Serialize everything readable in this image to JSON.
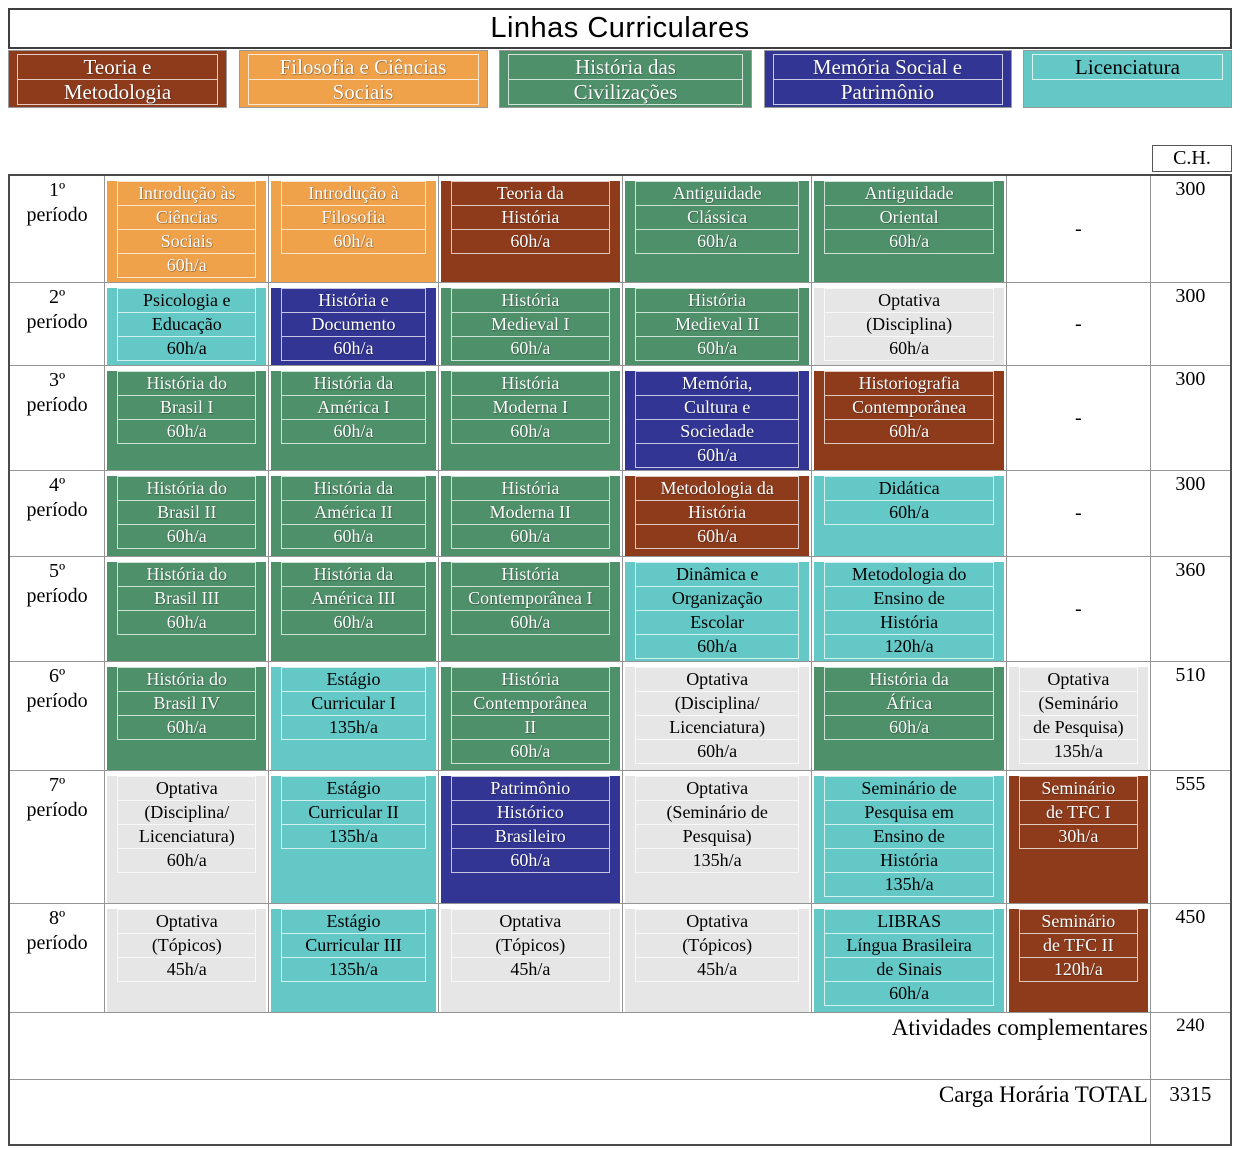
{
  "title": "Linhas Curriculares",
  "ch_header": "C.H.",
  "categories": {
    "teoria": {
      "bg": "#8E3B1C",
      "fg": "#FFFFFF"
    },
    "filosofia": {
      "bg": "#F0A24B",
      "fg": "#FFFFFF"
    },
    "historia": {
      "bg": "#4E9069",
      "fg": "#FFFFFF"
    },
    "memoria": {
      "bg": "#323594",
      "fg": "#FFFFFF"
    },
    "licenciatura": {
      "bg": "#63C8C6",
      "fg": "#000000"
    },
    "optativa": {
      "bg": "#E6E6E6",
      "fg": "#000000"
    },
    "none": {
      "bg": "#FFFFFF",
      "fg": "#000000"
    }
  },
  "legend": [
    {
      "category": "teoria",
      "lines": [
        "Teoria e",
        "Metodologia"
      ]
    },
    {
      "category": "filosofia",
      "lines": [
        "Filosofia e Ciências",
        "Sociais"
      ]
    },
    {
      "category": "historia",
      "lines": [
        "História das",
        "Civilizações"
      ]
    },
    {
      "category": "memoria",
      "lines": [
        "Memória Social e",
        "Patrimônio"
      ]
    },
    {
      "category": "licenciatura",
      "lines": [
        "Licenciatura"
      ]
    }
  ],
  "rows": [
    {
      "period": [
        "1º",
        "período"
      ],
      "ch": "300",
      "cells": [
        {
          "category": "filosofia",
          "lines": [
            "Introdução às",
            "Ciências",
            "Sociais",
            "60h/a"
          ]
        },
        {
          "category": "filosofia",
          "lines": [
            "Introdução à",
            "Filosofia",
            "60h/a"
          ]
        },
        {
          "category": "teoria",
          "lines": [
            "Teoria da",
            "História",
            "60h/a"
          ]
        },
        {
          "category": "historia",
          "lines": [
            "Antiguidade",
            "Clássica",
            "60h/a"
          ]
        },
        {
          "category": "historia",
          "lines": [
            "Antiguidade",
            "Oriental",
            "60h/a"
          ]
        },
        {
          "category": "none",
          "lines": [
            "-"
          ]
        }
      ]
    },
    {
      "period": [
        "2º",
        "período"
      ],
      "ch": "300",
      "cells": [
        {
          "category": "licenciatura",
          "lines": [
            "Psicologia e",
            "Educação",
            "60h/a"
          ]
        },
        {
          "category": "memoria",
          "lines": [
            "História e",
            "Documento",
            "60h/a"
          ]
        },
        {
          "category": "historia",
          "lines": [
            "História",
            "Medieval I",
            "60h/a"
          ]
        },
        {
          "category": "historia",
          "lines": [
            "História",
            "Medieval II",
            "60h/a"
          ]
        },
        {
          "category": "optativa",
          "lines": [
            "Optativa",
            "(Disciplina)",
            "60h/a"
          ]
        },
        {
          "category": "none",
          "lines": [
            "-"
          ]
        }
      ]
    },
    {
      "period": [
        "3º",
        "período"
      ],
      "ch": "300",
      "cells": [
        {
          "category": "historia",
          "lines": [
            "História do",
            "Brasil I",
            "60h/a"
          ]
        },
        {
          "category": "historia",
          "lines": [
            "História da",
            "América I",
            "60h/a"
          ]
        },
        {
          "category": "historia",
          "lines": [
            "História",
            "Moderna I",
            "60h/a"
          ]
        },
        {
          "category": "memoria",
          "lines": [
            "Memória,",
            "Cultura e",
            "Sociedade",
            "60h/a"
          ]
        },
        {
          "category": "teoria",
          "lines": [
            "Historiografia",
            "Contemporânea",
            "60h/a"
          ]
        },
        {
          "category": "none",
          "lines": [
            "-"
          ]
        }
      ]
    },
    {
      "period": [
        "4º",
        "período"
      ],
      "ch": "300",
      "cells": [
        {
          "category": "historia",
          "lines": [
            "História do",
            "Brasil II",
            "60h/a"
          ]
        },
        {
          "category": "historia",
          "lines": [
            "História da",
            "América II",
            "60h/a"
          ]
        },
        {
          "category": "historia",
          "lines": [
            "História",
            "Moderna II",
            "60h/a"
          ]
        },
        {
          "category": "teoria",
          "lines": [
            "Metodologia da",
            "História",
            "60h/a"
          ]
        },
        {
          "category": "licenciatura",
          "lines": [
            "Didática",
            "60h/a"
          ]
        },
        {
          "category": "none",
          "lines": [
            "-"
          ]
        }
      ]
    },
    {
      "period": [
        "5º",
        "período"
      ],
      "ch": "360",
      "cells": [
        {
          "category": "historia",
          "lines": [
            "História do",
            "Brasil III",
            "60h/a"
          ]
        },
        {
          "category": "historia",
          "lines": [
            "História da",
            "América III",
            "60h/a"
          ]
        },
        {
          "category": "historia",
          "lines": [
            "História",
            "Contemporânea I",
            "60h/a"
          ]
        },
        {
          "category": "licenciatura",
          "lines": [
            "Dinâmica e",
            "Organização",
            "Escolar",
            "60h/a"
          ]
        },
        {
          "category": "licenciatura",
          "lines": [
            "Metodologia do",
            "Ensino de",
            "História",
            "120h/a"
          ]
        },
        {
          "category": "none",
          "lines": [
            "-"
          ]
        }
      ]
    },
    {
      "period": [
        "6º",
        "período"
      ],
      "ch": "510",
      "cells": [
        {
          "category": "historia",
          "lines": [
            "História do",
            "Brasil IV",
            "60h/a"
          ]
        },
        {
          "category": "licenciatura",
          "lines": [
            "Estágio",
            "Curricular I",
            "135h/a"
          ]
        },
        {
          "category": "historia",
          "lines": [
            "História",
            "Contemporânea",
            "II",
            "60h/a"
          ]
        },
        {
          "category": "optativa",
          "lines": [
            "Optativa",
            "(Disciplina/",
            "Licenciatura)",
            "60h/a"
          ]
        },
        {
          "category": "historia",
          "lines": [
            "História da",
            "África",
            "60h/a"
          ]
        },
        {
          "category": "optativa",
          "lines": [
            "Optativa",
            "(Seminário",
            "de Pesquisa)",
            "135h/a"
          ]
        }
      ]
    },
    {
      "period": [
        "7º",
        "período"
      ],
      "ch": "555",
      "cells": [
        {
          "category": "optativa",
          "lines": [
            "Optativa",
            "(Disciplina/",
            "Licenciatura)",
            "60h/a"
          ]
        },
        {
          "category": "licenciatura",
          "lines": [
            "Estágio",
            "Curricular II",
            "135h/a"
          ]
        },
        {
          "category": "memoria",
          "lines": [
            "Patrimônio",
            "Histórico",
            "Brasileiro",
            "60h/a"
          ]
        },
        {
          "category": "optativa",
          "lines": [
            "Optativa",
            "(Seminário de",
            "Pesquisa)",
            "135h/a"
          ]
        },
        {
          "category": "licenciatura",
          "lines": [
            "Seminário de",
            "Pesquisa em",
            "Ensino de",
            "História",
            "135h/a"
          ]
        },
        {
          "category": "teoria",
          "lines": [
            "Seminário",
            "de TFC I",
            "30h/a"
          ]
        }
      ]
    },
    {
      "period": [
        "8º",
        "período"
      ],
      "ch": "450",
      "cells": [
        {
          "category": "optativa",
          "lines": [
            "Optativa",
            "(Tópicos)",
            "45h/a"
          ]
        },
        {
          "category": "licenciatura",
          "lines": [
            "Estágio",
            "Curricular III",
            "135h/a"
          ]
        },
        {
          "category": "optativa",
          "lines": [
            "Optativa",
            "(Tópicos)",
            "45h/a"
          ]
        },
        {
          "category": "optativa",
          "lines": [
            "Optativa",
            "(Tópicos)",
            "45h/a"
          ]
        },
        {
          "category": "licenciatura",
          "lines": [
            "LIBRAS",
            "Língua Brasileira",
            "de Sinais",
            "60h/a"
          ]
        },
        {
          "category": "teoria",
          "lines": [
            "Seminário",
            "de TFC II",
            "120h/a"
          ]
        }
      ]
    }
  ],
  "footer_rows": [
    {
      "label": "Atividades complementares",
      "ch": "240"
    },
    {
      "label": "Carga Horária TOTAL",
      "ch": "3315"
    }
  ]
}
